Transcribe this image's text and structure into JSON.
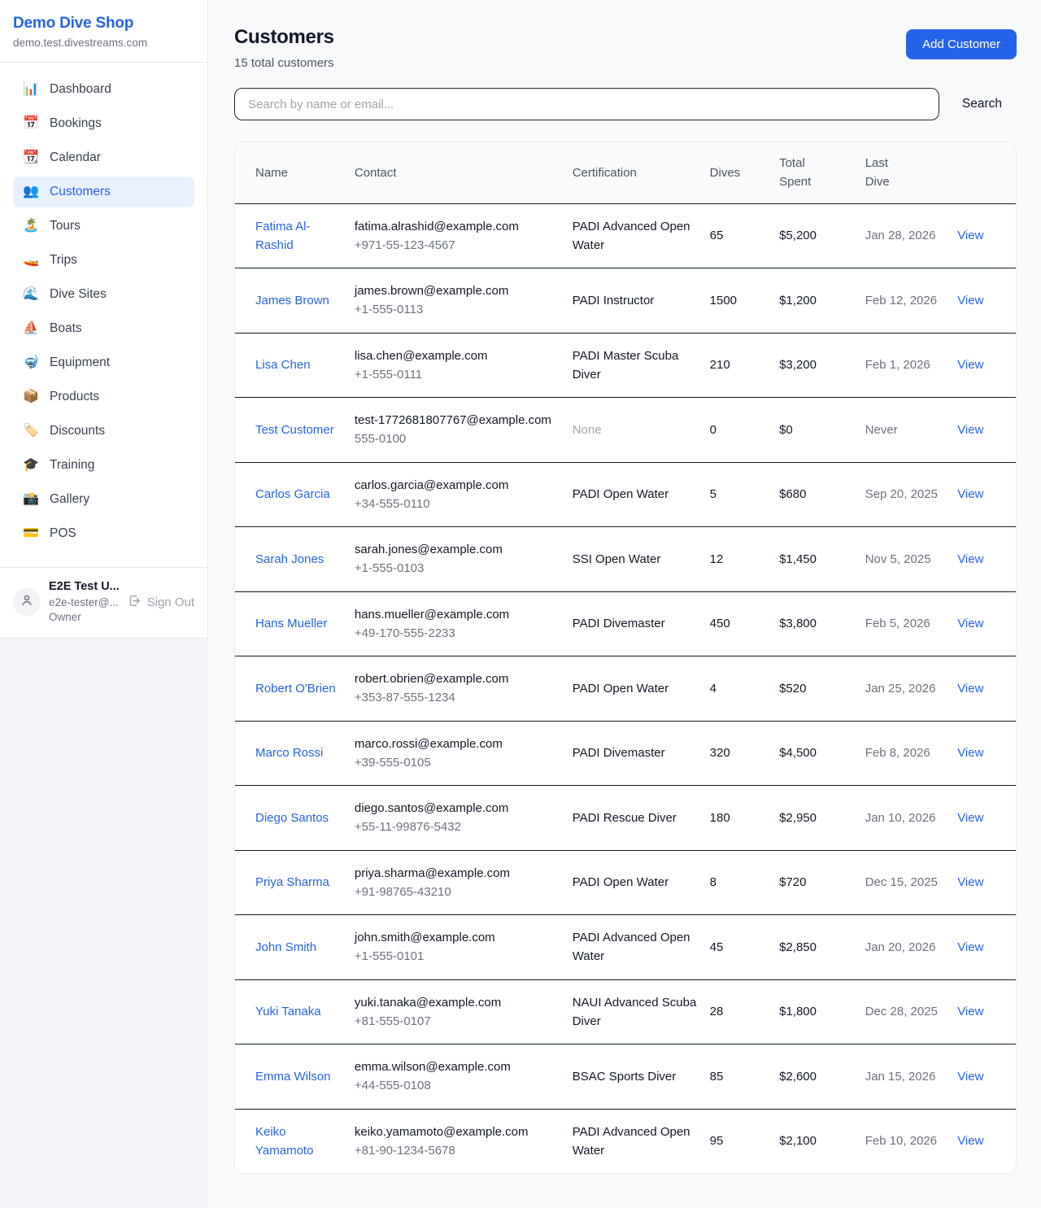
{
  "colors": {
    "accent": "#2563eb",
    "active_nav_bg": "#e8f0fe",
    "page_bg": "#f8f9fb",
    "table_header_bg": "#f9fafb",
    "row_border": "#111827",
    "muted_text": "#6b7280",
    "button_bg": "#2563eb",
    "button_text": "#ffffff"
  },
  "sidebar": {
    "title": "Demo Dive Shop",
    "subdomain": "demo.test.divestreams.com",
    "active_item": "Customers",
    "items": [
      {
        "slug": "dashboard",
        "icon": "📊",
        "label": "Dashboard"
      },
      {
        "slug": "bookings",
        "icon": "📅",
        "label": "Bookings"
      },
      {
        "slug": "calendar",
        "icon": "📆",
        "label": "Calendar"
      },
      {
        "slug": "customers",
        "icon": "👥",
        "label": "Customers"
      },
      {
        "slug": "tours",
        "icon": "🏝️",
        "label": "Tours"
      },
      {
        "slug": "trips",
        "icon": "🚤",
        "label": "Trips"
      },
      {
        "slug": "dive-sites",
        "icon": "🌊",
        "label": "Dive Sites"
      },
      {
        "slug": "boats",
        "icon": "⛵",
        "label": "Boats"
      },
      {
        "slug": "equipment",
        "icon": "🤿",
        "label": "Equipment"
      },
      {
        "slug": "products",
        "icon": "📦",
        "label": "Products"
      },
      {
        "slug": "discounts",
        "icon": "🏷️",
        "label": "Discounts"
      },
      {
        "slug": "training",
        "icon": "🎓",
        "label": "Training"
      },
      {
        "slug": "gallery",
        "icon": "📸",
        "label": "Gallery"
      },
      {
        "slug": "pos",
        "icon": "💳",
        "label": "POS"
      }
    ],
    "user": {
      "name": "E2E Test U...",
      "email": "e2e-tester@...",
      "role": "Owner",
      "sign_out_label": "Sign Out"
    }
  },
  "header": {
    "title": "Customers",
    "subtitle": "15 total customers",
    "add_button_label": "Add Customer"
  },
  "search": {
    "placeholder": "Search by name or email...",
    "button_label": "Search"
  },
  "table": {
    "columns": [
      {
        "key": "name",
        "label": "Name",
        "wrap": false
      },
      {
        "key": "contact",
        "label": "Contact",
        "wrap": false
      },
      {
        "key": "certification",
        "label": "Certification",
        "wrap": false
      },
      {
        "key": "dives",
        "label": "Dives",
        "wrap": false
      },
      {
        "key": "total-spent",
        "label": "Total Spent",
        "wrap": true
      },
      {
        "key": "last-dive",
        "label": "Last Dive",
        "wrap": true
      },
      {
        "key": "actions",
        "label": "",
        "wrap": false
      }
    ],
    "rows": [
      {
        "name": "Fatima Al-Rashid",
        "email": "fatima.alrashid@example.com",
        "phone": "+971-55-123-4567",
        "certification": "PADI Advanced Open Water",
        "dives": "65",
        "total_spent": "$5,200",
        "last_dive": "Jan 28, 2026",
        "action": "View"
      },
      {
        "name": "James Brown",
        "email": "james.brown@example.com",
        "phone": "+1-555-0113",
        "certification": "PADI Instructor",
        "dives": "1500",
        "total_spent": "$1,200",
        "last_dive": "Feb 12, 2026",
        "action": "View"
      },
      {
        "name": "Lisa Chen",
        "email": "lisa.chen@example.com",
        "phone": "+1-555-0111",
        "certification": "PADI Master Scuba Diver",
        "dives": "210",
        "total_spent": "$3,200",
        "last_dive": "Feb 1, 2026",
        "action": "View"
      },
      {
        "name": "Test Customer",
        "email": "test-1772681807767@example.com",
        "phone": "555-0100",
        "certification": "None",
        "dives": "0",
        "total_spent": "$0",
        "last_dive": "Never",
        "action": "View"
      },
      {
        "name": "Carlos Garcia",
        "email": "carlos.garcia@example.com",
        "phone": "+34-555-0110",
        "certification": "PADI Open Water",
        "dives": "5",
        "total_spent": "$680",
        "last_dive": "Sep 20, 2025",
        "action": "View"
      },
      {
        "name": "Sarah Jones",
        "email": "sarah.jones@example.com",
        "phone": "+1-555-0103",
        "certification": "SSI Open Water",
        "dives": "12",
        "total_spent": "$1,450",
        "last_dive": "Nov 5, 2025",
        "action": "View"
      },
      {
        "name": "Hans Mueller",
        "email": "hans.mueller@example.com",
        "phone": "+49-170-555-2233",
        "certification": "PADI Divemaster",
        "dives": "450",
        "total_spent": "$3,800",
        "last_dive": "Feb 5, 2026",
        "action": "View"
      },
      {
        "name": "Robert O'Brien",
        "email": "robert.obrien@example.com",
        "phone": "+353-87-555-1234",
        "certification": "PADI Open Water",
        "dives": "4",
        "total_spent": "$520",
        "last_dive": "Jan 25, 2026",
        "action": "View"
      },
      {
        "name": "Marco Rossi",
        "email": "marco.rossi@example.com",
        "phone": "+39-555-0105",
        "certification": "PADI Divemaster",
        "dives": "320",
        "total_spent": "$4,500",
        "last_dive": "Feb 8, 2026",
        "action": "View"
      },
      {
        "name": "Diego Santos",
        "email": "diego.santos@example.com",
        "phone": "+55-11-99876-5432",
        "certification": "PADI Rescue Diver",
        "dives": "180",
        "total_spent": "$2,950",
        "last_dive": "Jan 10, 2026",
        "action": "View"
      },
      {
        "name": "Priya Sharma",
        "email": "priya.sharma@example.com",
        "phone": "+91-98765-43210",
        "certification": "PADI Open Water",
        "dives": "8",
        "total_spent": "$720",
        "last_dive": "Dec 15, 2025",
        "action": "View"
      },
      {
        "name": "John Smith",
        "email": "john.smith@example.com",
        "phone": "+1-555-0101",
        "certification": "PADI Advanced Open Water",
        "dives": "45",
        "total_spent": "$2,850",
        "last_dive": "Jan 20, 2026",
        "action": "View"
      },
      {
        "name": "Yuki Tanaka",
        "email": "yuki.tanaka@example.com",
        "phone": "+81-555-0107",
        "certification": "NAUI Advanced Scuba Diver",
        "dives": "28",
        "total_spent": "$1,800",
        "last_dive": "Dec 28, 2025",
        "action": "View"
      },
      {
        "name": "Emma Wilson",
        "email": "emma.wilson@example.com",
        "phone": "+44-555-0108",
        "certification": "BSAC Sports Diver",
        "dives": "85",
        "total_spent": "$2,600",
        "last_dive": "Jan 15, 2026",
        "action": "View"
      },
      {
        "name": "Keiko Yamamoto",
        "email": "keiko.yamamoto@example.com",
        "phone": "+81-90-1234-5678",
        "certification": "PADI Advanced Open Water",
        "dives": "95",
        "total_spent": "$2,100",
        "last_dive": "Feb 10, 2026",
        "action": "View"
      }
    ]
  }
}
